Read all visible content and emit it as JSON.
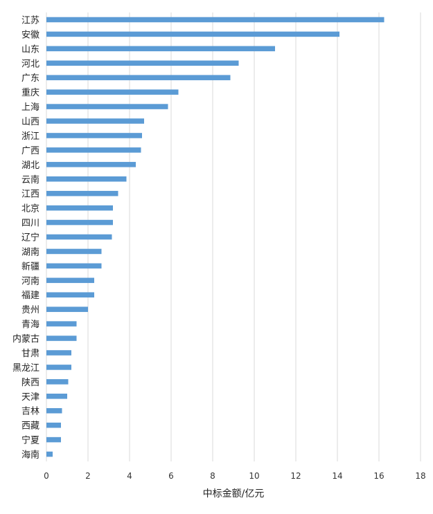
{
  "chart_data": {
    "type": "bar",
    "orientation": "horizontal",
    "categories": [
      "江苏",
      "安徽",
      "山东",
      "河北",
      "广东",
      "重庆",
      "上海",
      "山西",
      "浙江",
      "广西",
      "湖北",
      "云南",
      "江西",
      "北京",
      "四川",
      "辽宁",
      "湖南",
      "新疆",
      "河南",
      "福建",
      "贵州",
      "青海",
      "内蒙古",
      "甘肃",
      "黑龙江",
      "陕西",
      "天津",
      "吉林",
      "西藏",
      "宁夏",
      "海南"
    ],
    "values": [
      16.25,
      14.1,
      11.0,
      9.25,
      8.85,
      6.35,
      5.85,
      4.7,
      4.6,
      4.55,
      4.3,
      3.85,
      3.45,
      3.2,
      3.2,
      3.15,
      2.65,
      2.65,
      2.3,
      2.3,
      2.0,
      1.45,
      1.45,
      1.2,
      1.2,
      1.05,
      1.0,
      0.75,
      0.7,
      0.7,
      0.3
    ],
    "xlabel": "中标金额/亿元",
    "ylabel": "",
    "xlim": [
      0,
      18
    ],
    "xticks": [
      "0",
      "2",
      "4",
      "6",
      "8",
      "10",
      "12",
      "14",
      "16",
      "18"
    ],
    "grid": "vertical",
    "legend": "none",
    "bar_color": "#5b9bd5",
    "grid_color": "#d9d9d9"
  }
}
